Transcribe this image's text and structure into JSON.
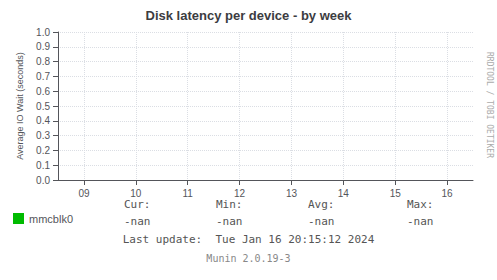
{
  "chart_data": {
    "type": "line",
    "title": "Disk latency per device - by week",
    "ylabel": "Average IO Wait (seconds)",
    "x": [],
    "series": [
      {
        "name": "mmcblk0",
        "color": "#00bb00",
        "values": []
      }
    ],
    "xlim": [
      8.5,
      16.5
    ],
    "xticks": [
      {
        "value": 9,
        "label": "09"
      },
      {
        "value": 10,
        "label": "10"
      },
      {
        "value": 11,
        "label": "11"
      },
      {
        "value": 12,
        "label": "12"
      },
      {
        "value": 13,
        "label": "13"
      },
      {
        "value": 14,
        "label": "14"
      },
      {
        "value": 15,
        "label": "15"
      },
      {
        "value": 16,
        "label": "16"
      }
    ],
    "ylim": [
      0.0,
      1.0
    ],
    "yticks": [
      {
        "value": 0.0,
        "label": "0.0"
      },
      0.1,
      0.2,
      0.3,
      0.4,
      0.5,
      0.6,
      0.7,
      0.8,
      0.9,
      {
        "value": 1.0,
        "label": "1.0"
      }
    ],
    "grid": true,
    "legend": "bottom",
    "stats": [
      {
        "label": "Cur:",
        "value": "-nan"
      },
      {
        "label": "Min:",
        "value": "-nan"
      },
      {
        "label": "Avg:",
        "value": "-nan"
      },
      {
        "label": "Max:",
        "value": "-nan"
      }
    ],
    "annotations": [
      "Last update:  Tue Jan 16 20:15:12 2024",
      "Munin 2.0.19-3",
      "RRDTOOL / TOBI OETIKER"
    ]
  }
}
